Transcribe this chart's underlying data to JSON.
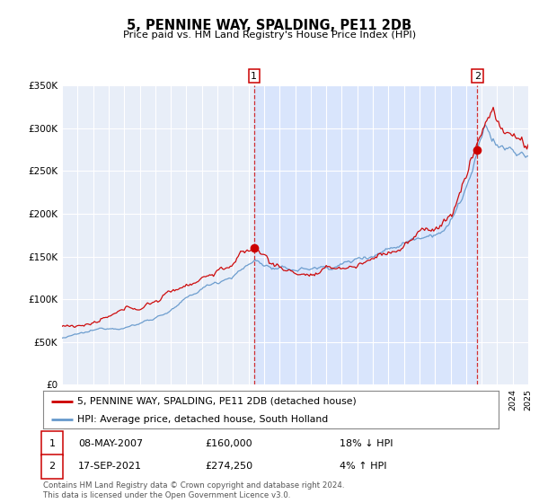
{
  "title": "5, PENNINE WAY, SPALDING, PE11 2DB",
  "subtitle": "Price paid vs. HM Land Registry's House Price Index (HPI)",
  "legend_line1": "5, PENNINE WAY, SPALDING, PE11 2DB (detached house)",
  "legend_line2": "HPI: Average price, detached house, South Holland",
  "annotation_footer": "Contains HM Land Registry data © Crown copyright and database right 2024.\nThis data is licensed under the Open Government Licence v3.0.",
  "marker1_date": "08-MAY-2007",
  "marker1_price": "£160,000",
  "marker1_hpi": "18% ↓ HPI",
  "marker2_date": "17-SEP-2021",
  "marker2_price": "£274,250",
  "marker2_hpi": "4% ↑ HPI",
  "red_color": "#cc0000",
  "blue_color": "#6699cc",
  "plot_bg": "#e8eef8",
  "highlight_color": "#d0dfff",
  "ylim": [
    0,
    350000
  ],
  "yticks": [
    0,
    50000,
    100000,
    150000,
    200000,
    250000,
    300000,
    350000
  ],
  "ytick_labels": [
    "£0",
    "£50K",
    "£100K",
    "£150K",
    "£200K",
    "£250K",
    "£300K",
    "£350K"
  ],
  "marker1_x": 2007.36,
  "marker1_y": 160000,
  "marker2_x": 2021.72,
  "marker2_y": 274250,
  "xmin": 1995,
  "xmax": 2025
}
